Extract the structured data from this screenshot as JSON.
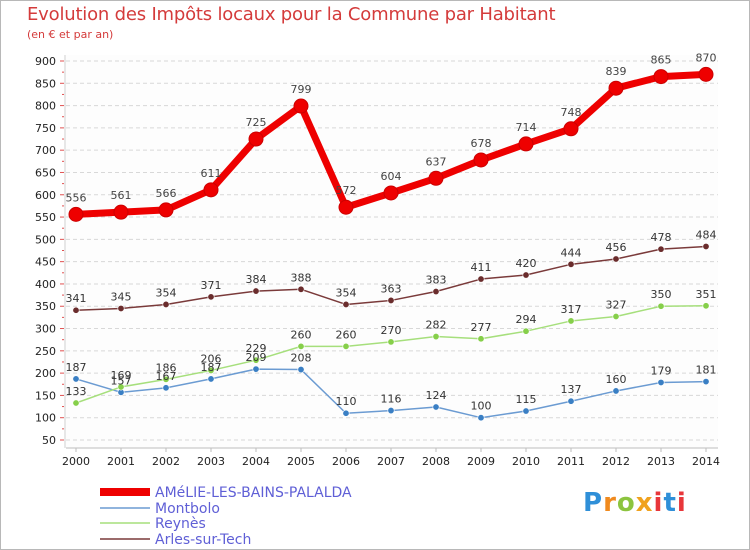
{
  "header": {
    "title": "Evolution des Impôts locaux pour la Commune par Habitant",
    "subtitle": "(en € et par an)"
  },
  "logo": {
    "text": "Proxiti",
    "letters": [
      "P",
      "r",
      "o",
      "x",
      "i",
      "t",
      "i"
    ]
  },
  "colors": {
    "title": "#d43b3b",
    "grid": "#d8d8d8",
    "plot_background": "#fdfdfd",
    "legend_text": "#5f5fd6"
  },
  "chart_data": {
    "type": "line",
    "title": "Evolution des Impôts locaux pour la Commune par Habitant",
    "subtitle": "(en € et par an)",
    "xlabel": "",
    "ylabel": "",
    "x": [
      "2000",
      "2001",
      "2002",
      "2003",
      "2004",
      "2005",
      "2006",
      "2007",
      "2008",
      "2009",
      "2010",
      "2011",
      "2012",
      "2013",
      "2014"
    ],
    "ylim": [
      50,
      900
    ],
    "y_ticks": [
      50,
      100,
      150,
      200,
      250,
      300,
      350,
      400,
      450,
      500,
      550,
      600,
      650,
      700,
      750,
      800,
      850,
      900
    ],
    "grid": true,
    "legend_position": "bottom-left",
    "series": [
      {
        "name": "AMéLIE-LES-BAINS-PALALDA",
        "color": "#ee0000",
        "marker_color": "#ee0000",
        "emphasis": true,
        "values": [
          556,
          561,
          566,
          611,
          725,
          799,
          572,
          604,
          637,
          678,
          714,
          748,
          839,
          865,
          870
        ]
      },
      {
        "name": "Montbolo",
        "color": "#6b9bd2",
        "marker_color": "#3a7fc4",
        "values": [
          187,
          157,
          167,
          187,
          209,
          208,
          110,
          116,
          124,
          100,
          115,
          137,
          160,
          179,
          181
        ]
      },
      {
        "name": "Reynès",
        "color": "#a6df7c",
        "marker_color": "#86cf4a",
        "values": [
          133,
          169,
          186,
          206,
          229,
          260,
          260,
          270,
          282,
          277,
          294,
          317,
          327,
          350,
          351
        ]
      },
      {
        "name": "Arles-sur-Tech",
        "color": "#7a3a3a",
        "marker_color": "#6a2c2c",
        "values": [
          341,
          345,
          354,
          371,
          384,
          388,
          354,
          363,
          383,
          411,
          420,
          444,
          456,
          478,
          484
        ]
      }
    ]
  }
}
